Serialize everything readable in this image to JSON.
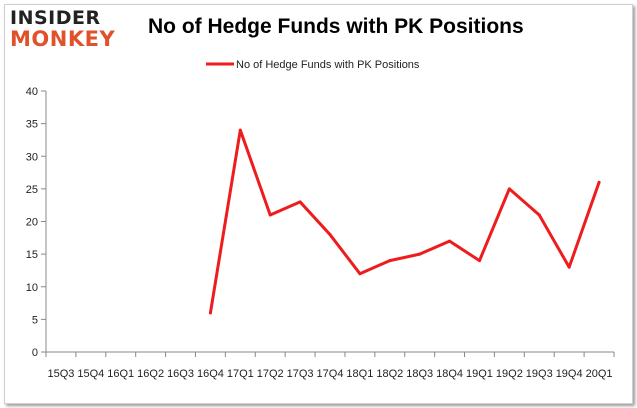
{
  "logo": {
    "top": "INSIDER",
    "bottom": "MONKEY"
  },
  "chart_data": {
    "type": "line",
    "title": "No of Hedge Funds with PK Positions",
    "xlabel": "",
    "ylabel": "",
    "ylim": [
      0,
      40
    ],
    "yticks": [
      0,
      5,
      10,
      15,
      20,
      25,
      30,
      35,
      40
    ],
    "legend_position": "top-center",
    "grid": false,
    "categories": [
      "2015Q3",
      "2015Q4",
      "2016Q1",
      "2016Q2",
      "2016Q3",
      "2016Q4",
      "2017Q1",
      "2017Q2",
      "2017Q3",
      "2017Q4",
      "2018Q1",
      "2018Q2",
      "2018Q3",
      "2018Q4",
      "2019Q1",
      "2019Q2",
      "2019Q3",
      "2019Q4",
      "2020Q1"
    ],
    "tick_labels": [
      "15Q3",
      "15Q4",
      "16Q1",
      "16Q2",
      "16Q3",
      "16Q4",
      "17Q1",
      "17Q2",
      "17Q3",
      "17Q4",
      "18Q1",
      "18Q2",
      "18Q3",
      "18Q4",
      "19Q1",
      "19Q2",
      "19Q3",
      "19Q4",
      "20Q1"
    ],
    "series": [
      {
        "name": "No of Hedge Funds with PK Positions",
        "color": "#ee1c1c",
        "values": [
          null,
          null,
          null,
          null,
          null,
          6,
          34,
          21,
          23,
          18,
          12,
          14,
          15,
          17,
          14,
          25,
          21,
          13,
          26
        ]
      }
    ]
  }
}
